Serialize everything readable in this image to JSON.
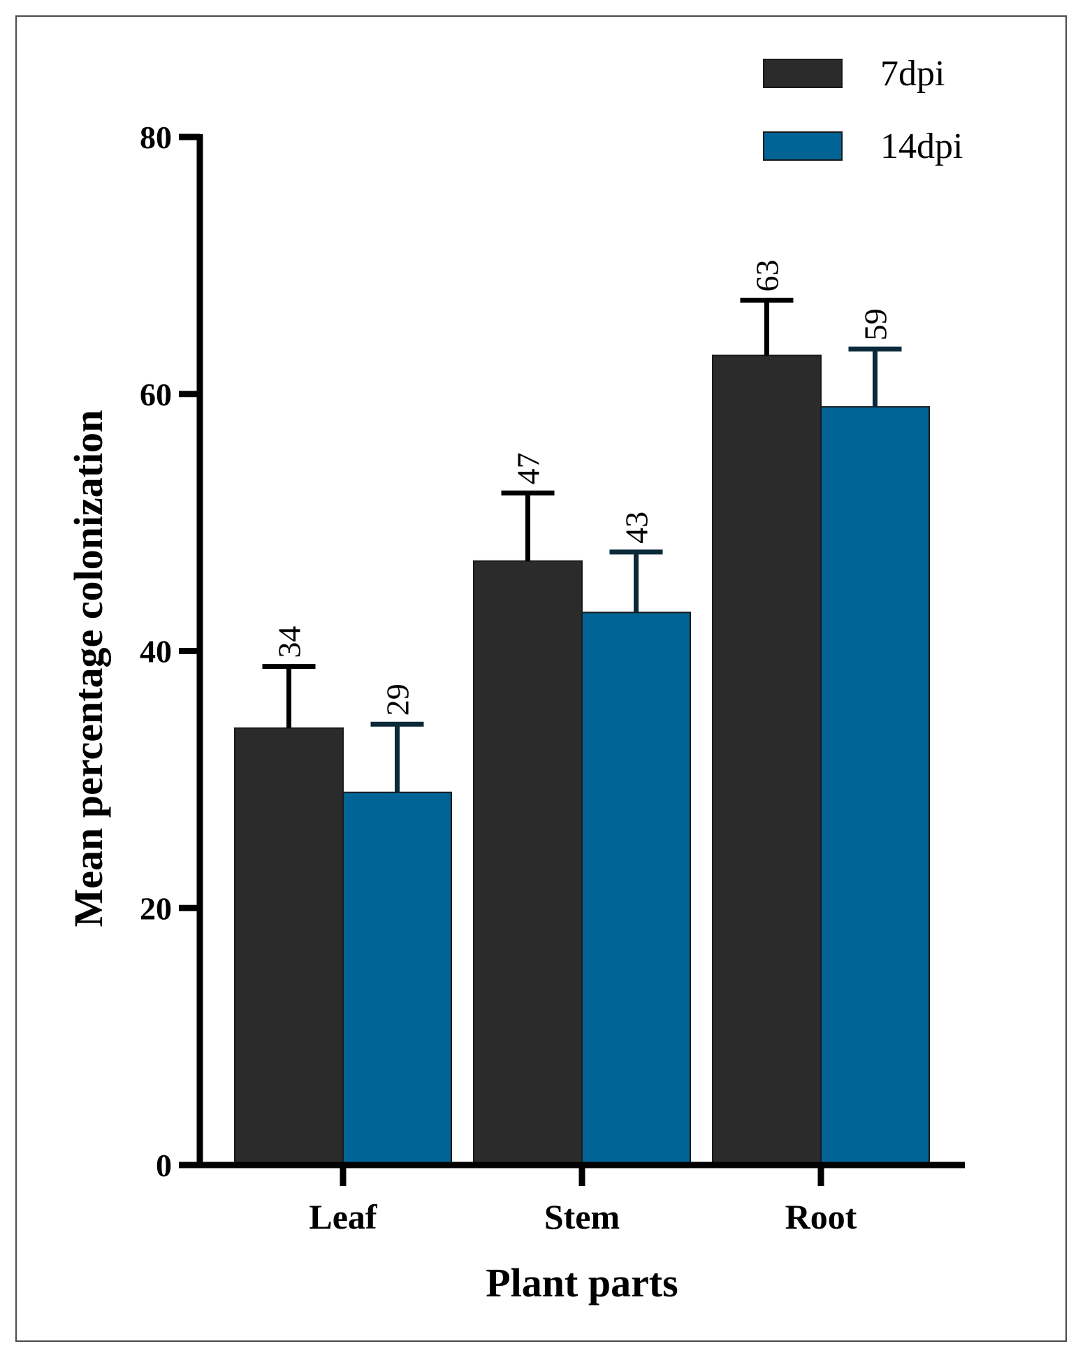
{
  "chart_data": {
    "type": "bar",
    "title": "",
    "xlabel": "Plant parts",
    "ylabel": "Mean percentage colonization",
    "categories": [
      "Leaf",
      "Stem",
      "Root"
    ],
    "series": [
      {
        "name": "7dpi",
        "color": "#2b2b2b",
        "values": [
          34,
          47,
          63
        ],
        "errors": [
          4.8,
          5.3,
          4.3
        ],
        "labels": [
          "34",
          "47",
          "63"
        ],
        "errbar_color": "#000000"
      },
      {
        "name": "14dpi",
        "color": "#016496",
        "values": [
          29,
          43,
          59
        ],
        "errors": [
          5.3,
          4.7,
          4.5
        ],
        "labels": [
          "29",
          "43",
          "59"
        ],
        "errbar_color": "#0a2a3a"
      }
    ],
    "ylim": [
      0,
      80
    ],
    "yticks": [
      "0",
      "20",
      "40",
      "60",
      "80"
    ],
    "legend_position": "top-right",
    "grid": false
  }
}
